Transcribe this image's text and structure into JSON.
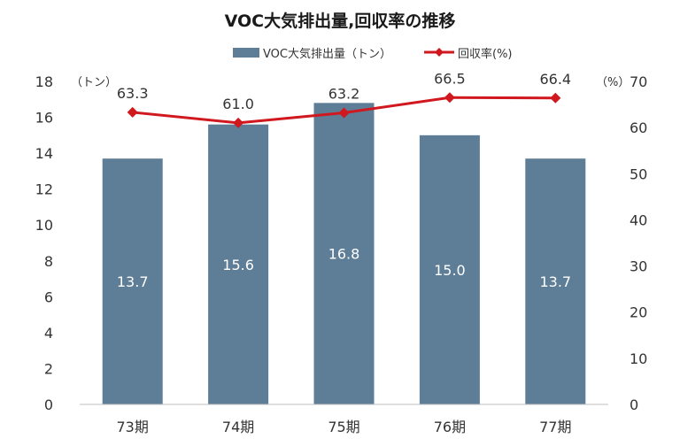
{
  "chart_data": {
    "type": "bar",
    "title": "VOC大気排出量,回収率の推移",
    "categories": [
      "73期",
      "74期",
      "75期",
      "76期",
      "77期"
    ],
    "series": [
      {
        "name": "VOC大気排出量（トン）",
        "type": "bar",
        "axis": "left",
        "color": "#5e7d96",
        "values": [
          13.7,
          15.6,
          16.8,
          15.0,
          13.7
        ],
        "labels": [
          "13.7",
          "15.6",
          "16.8",
          "15.0",
          "13.7"
        ]
      },
      {
        "name": "回収率(%)",
        "type": "line",
        "axis": "right",
        "color": "#d0181e",
        "marker": "diamond",
        "values": [
          63.3,
          61.0,
          63.2,
          66.5,
          66.4
        ],
        "labels": [
          "63.3",
          "61.0",
          "63.2",
          "66.5",
          "66.4"
        ]
      }
    ],
    "y_left": {
      "unit": "（トン）",
      "ylim": [
        0,
        18
      ],
      "ticks": [
        0,
        2,
        4,
        6,
        8,
        10,
        12,
        14,
        16,
        18
      ]
    },
    "y_right": {
      "unit": "（%）",
      "ylim": [
        0,
        70
      ],
      "ticks": [
        0,
        10,
        20,
        30,
        40,
        50,
        60,
        70
      ]
    },
    "grid": false,
    "legend_position": "top-center"
  }
}
